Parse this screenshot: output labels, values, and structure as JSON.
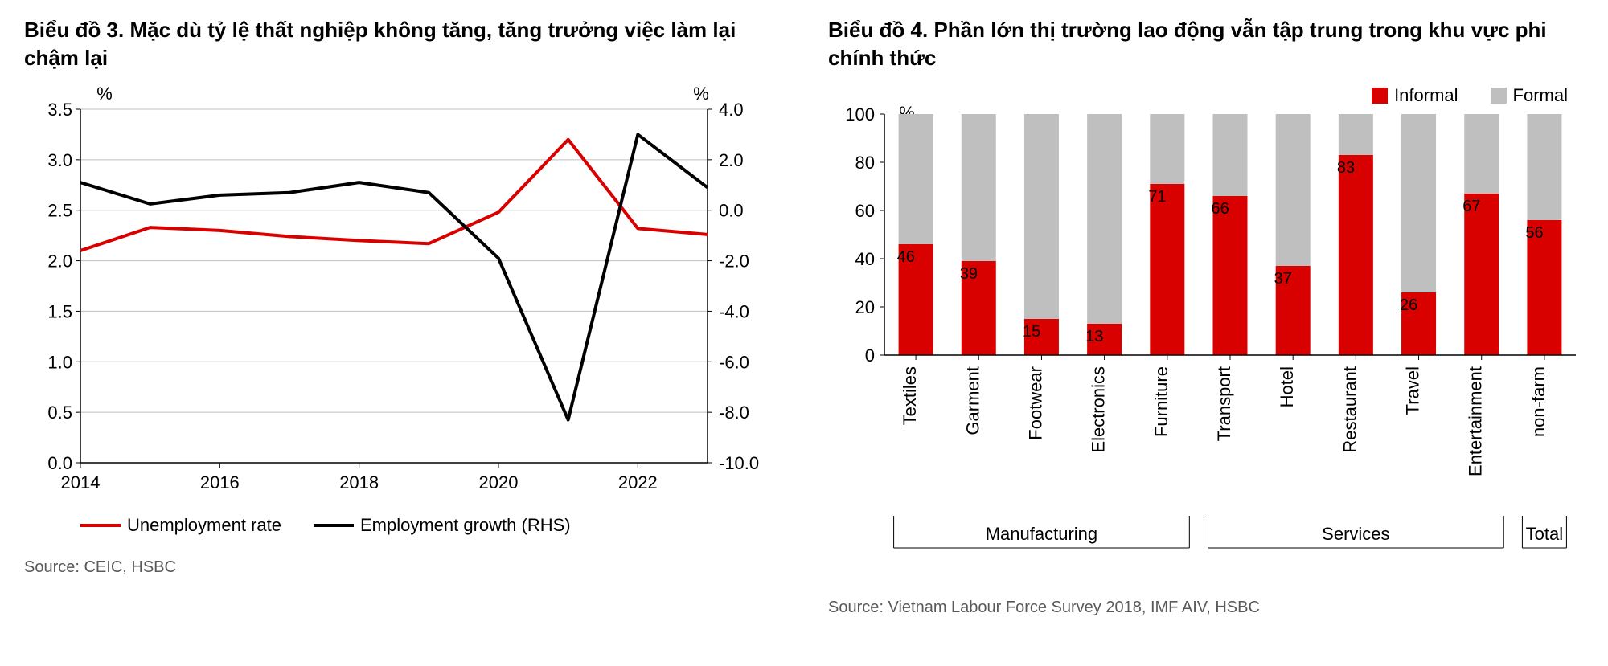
{
  "chart3": {
    "title": "Biểu đồ 3. Mặc dù tỷ lệ thất nghiệp không tăng, tăng trưởng việc làm lại chậm lại",
    "type": "line",
    "y_left": {
      "unit": "%",
      "min": 0.0,
      "max": 3.5,
      "step": 0.5
    },
    "y_right": {
      "unit": "%",
      "min": -10.0,
      "max": 4.0,
      "step": 2.0
    },
    "x": {
      "min": 2014,
      "max": 2023,
      "tick_start": 2014,
      "tick_step": 2
    },
    "series": [
      {
        "name": "Unemployment rate",
        "color": "#d90000",
        "stroke_width": 4,
        "axis": "left",
        "points": [
          {
            "x": 2014,
            "y": 2.1
          },
          {
            "x": 2015,
            "y": 2.33
          },
          {
            "x": 2016,
            "y": 2.3
          },
          {
            "x": 2017,
            "y": 2.24
          },
          {
            "x": 2018,
            "y": 2.2
          },
          {
            "x": 2019,
            "y": 2.17
          },
          {
            "x": 2020,
            "y": 2.48
          },
          {
            "x": 2021,
            "y": 3.2
          },
          {
            "x": 2022,
            "y": 2.32
          },
          {
            "x": 2023,
            "y": 2.26
          }
        ]
      },
      {
        "name": "Employment growth (RHS)",
        "color": "#000000",
        "stroke_width": 4,
        "axis": "right",
        "points": [
          {
            "x": 2014,
            "y": 1.1
          },
          {
            "x": 2015,
            "y": 0.25
          },
          {
            "x": 2016,
            "y": 0.6
          },
          {
            "x": 2017,
            "y": 0.7
          },
          {
            "x": 2018,
            "y": 1.1
          },
          {
            "x": 2019,
            "y": 0.7
          },
          {
            "x": 2020,
            "y": -1.9
          },
          {
            "x": 2021,
            "y": -8.3
          },
          {
            "x": 2022,
            "y": 3.0
          },
          {
            "x": 2023,
            "y": 0.9
          }
        ]
      }
    ],
    "legend": [
      {
        "label": "Unemployment rate",
        "color": "#d90000"
      },
      {
        "label": "Employment growth (RHS)",
        "color": "#000000"
      }
    ],
    "source": "Source: CEIC, HSBC",
    "grid_color": "#bfbfbf",
    "axis_color": "#000000",
    "background_color": "#ffffff"
  },
  "chart4": {
    "title": "Biểu đồ 4. Phần lớn thị trường lao động vẫn tập trung trong khu vực phi chính thức",
    "type": "stacked-bar",
    "y": {
      "unit": "%",
      "min": 0,
      "max": 100,
      "step": 20
    },
    "legend": [
      {
        "label": "Informal",
        "color": "#d90000"
      },
      {
        "label": "Formal",
        "color": "#bfbfbf"
      }
    ],
    "groups": [
      {
        "label": "Manufacturing",
        "items": [
          {
            "label": "Textiles",
            "informal": 46
          },
          {
            "label": "Garment",
            "informal": 39
          },
          {
            "label": "Footwear",
            "informal": 15
          },
          {
            "label": "Electronics",
            "informal": 13
          },
          {
            "label": "Furniture",
            "informal": 71
          }
        ]
      },
      {
        "label": "Services",
        "items": [
          {
            "label": "Transport",
            "informal": 66
          },
          {
            "label": "Hotel",
            "informal": 37
          },
          {
            "label": "Restaurant",
            "informal": 83
          },
          {
            "label": "Travel",
            "informal": 26
          },
          {
            "label": "Entertainment",
            "informal": 67
          }
        ]
      },
      {
        "label": "Total",
        "items": [
          {
            "label": "non-farm",
            "informal": 56
          }
        ]
      }
    ],
    "bar_width_ratio": 0.55,
    "source": "Source: Vietnam Labour Force Survey 2018, IMF AIV, HSBC",
    "axis_color": "#000000",
    "background_color": "#ffffff"
  }
}
